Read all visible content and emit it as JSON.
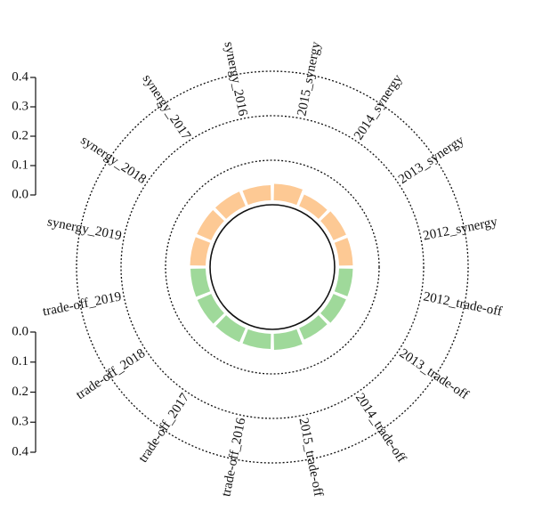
{
  "chart_data": {
    "type": "radial-bar",
    "title": "",
    "categories": [
      "2012",
      "2013",
      "2014",
      "2015",
      "2016",
      "2017",
      "2018",
      "2019"
    ],
    "series": [
      {
        "name": "synergy",
        "color": "#fdc994",
        "values": [
          0.031,
          0.031,
          0.028,
          0.037,
          0.034,
          0.035,
          0.035,
          0.035
        ],
        "labels": [
          "2012_synergy",
          "2013_synergy",
          "2014_synergy",
          "2015_synergy",
          "synergy_2016",
          "synergy_2017",
          "synergy_2018",
          "synergy_2019"
        ]
      },
      {
        "name": "trade-off",
        "color": "#9fd99a",
        "values": [
          0.031,
          0.031,
          0.028,
          0.036,
          0.034,
          0.034,
          0.034,
          0.034
        ],
        "labels": [
          "2012_trade-off",
          "2013_trade-off",
          "2014_trade-off",
          "2015_trade-off",
          "trade-off_2016",
          "trade-off_2017",
          "trade-off_2018",
          "trade-off_2019"
        ]
      }
    ],
    "synergy_axis": {
      "ticks": [
        "0.4",
        "0.3",
        "0.2",
        "0.1",
        "0.0"
      ]
    },
    "tradeoff_axis": {
      "ticks": [
        "0.0",
        "0.1",
        "0.2",
        "0.3",
        "0.4"
      ]
    },
    "ylim": [
      0,
      0.4
    ],
    "grid_rings": [
      0.1,
      0.2,
      0.3
    ]
  }
}
